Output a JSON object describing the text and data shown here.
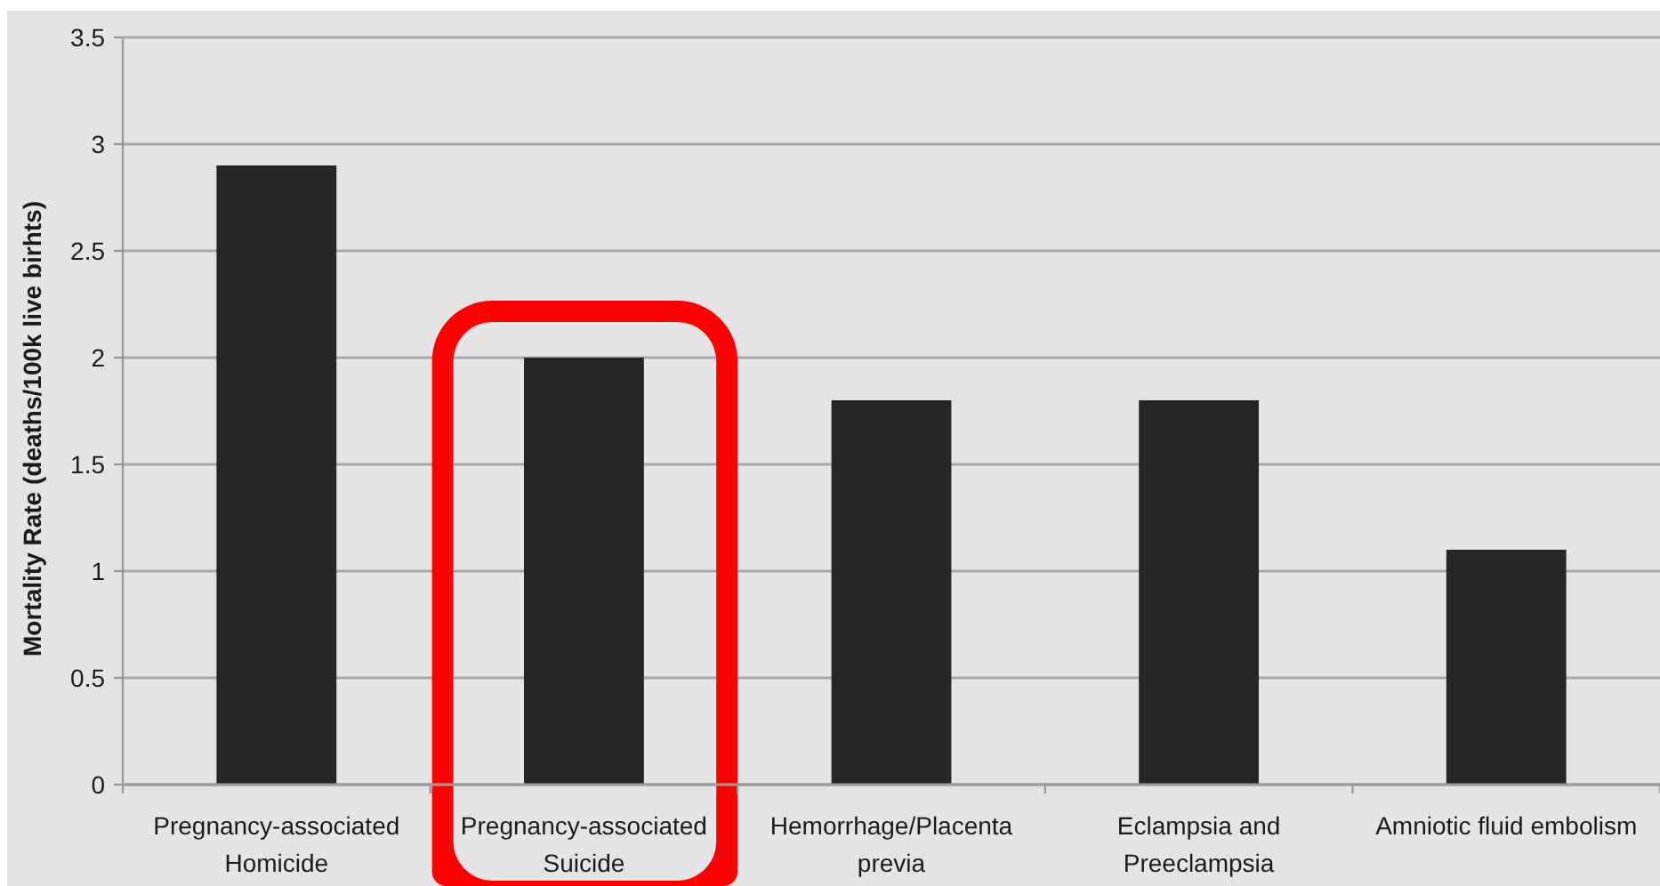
{
  "chart_data": {
    "type": "bar",
    "ylabel": "Mortality Rate (deaths/100k live birhts)",
    "categories": [
      "Pregnancy-associated Homicide",
      "Pregnancy-associated Suicide",
      "Hemorrhage/Placenta previa",
      "Eclampsia and Preeclampsia",
      "Amniotic fluid embolism"
    ],
    "values": [
      2.9,
      2.0,
      1.8,
      1.8,
      1.1
    ],
    "color": "#262626",
    "ylim": [
      0,
      3.5
    ],
    "yticks": [
      0,
      0.5,
      1,
      1.5,
      2,
      2.5,
      3,
      3.5
    ],
    "grid": "y",
    "bands": [
      {
        "axis": "x",
        "from": "Pregnancy-associated Suicide",
        "to": "Pregnancy-associated Suicide",
        "color": "#ff0000"
      }
    ]
  }
}
